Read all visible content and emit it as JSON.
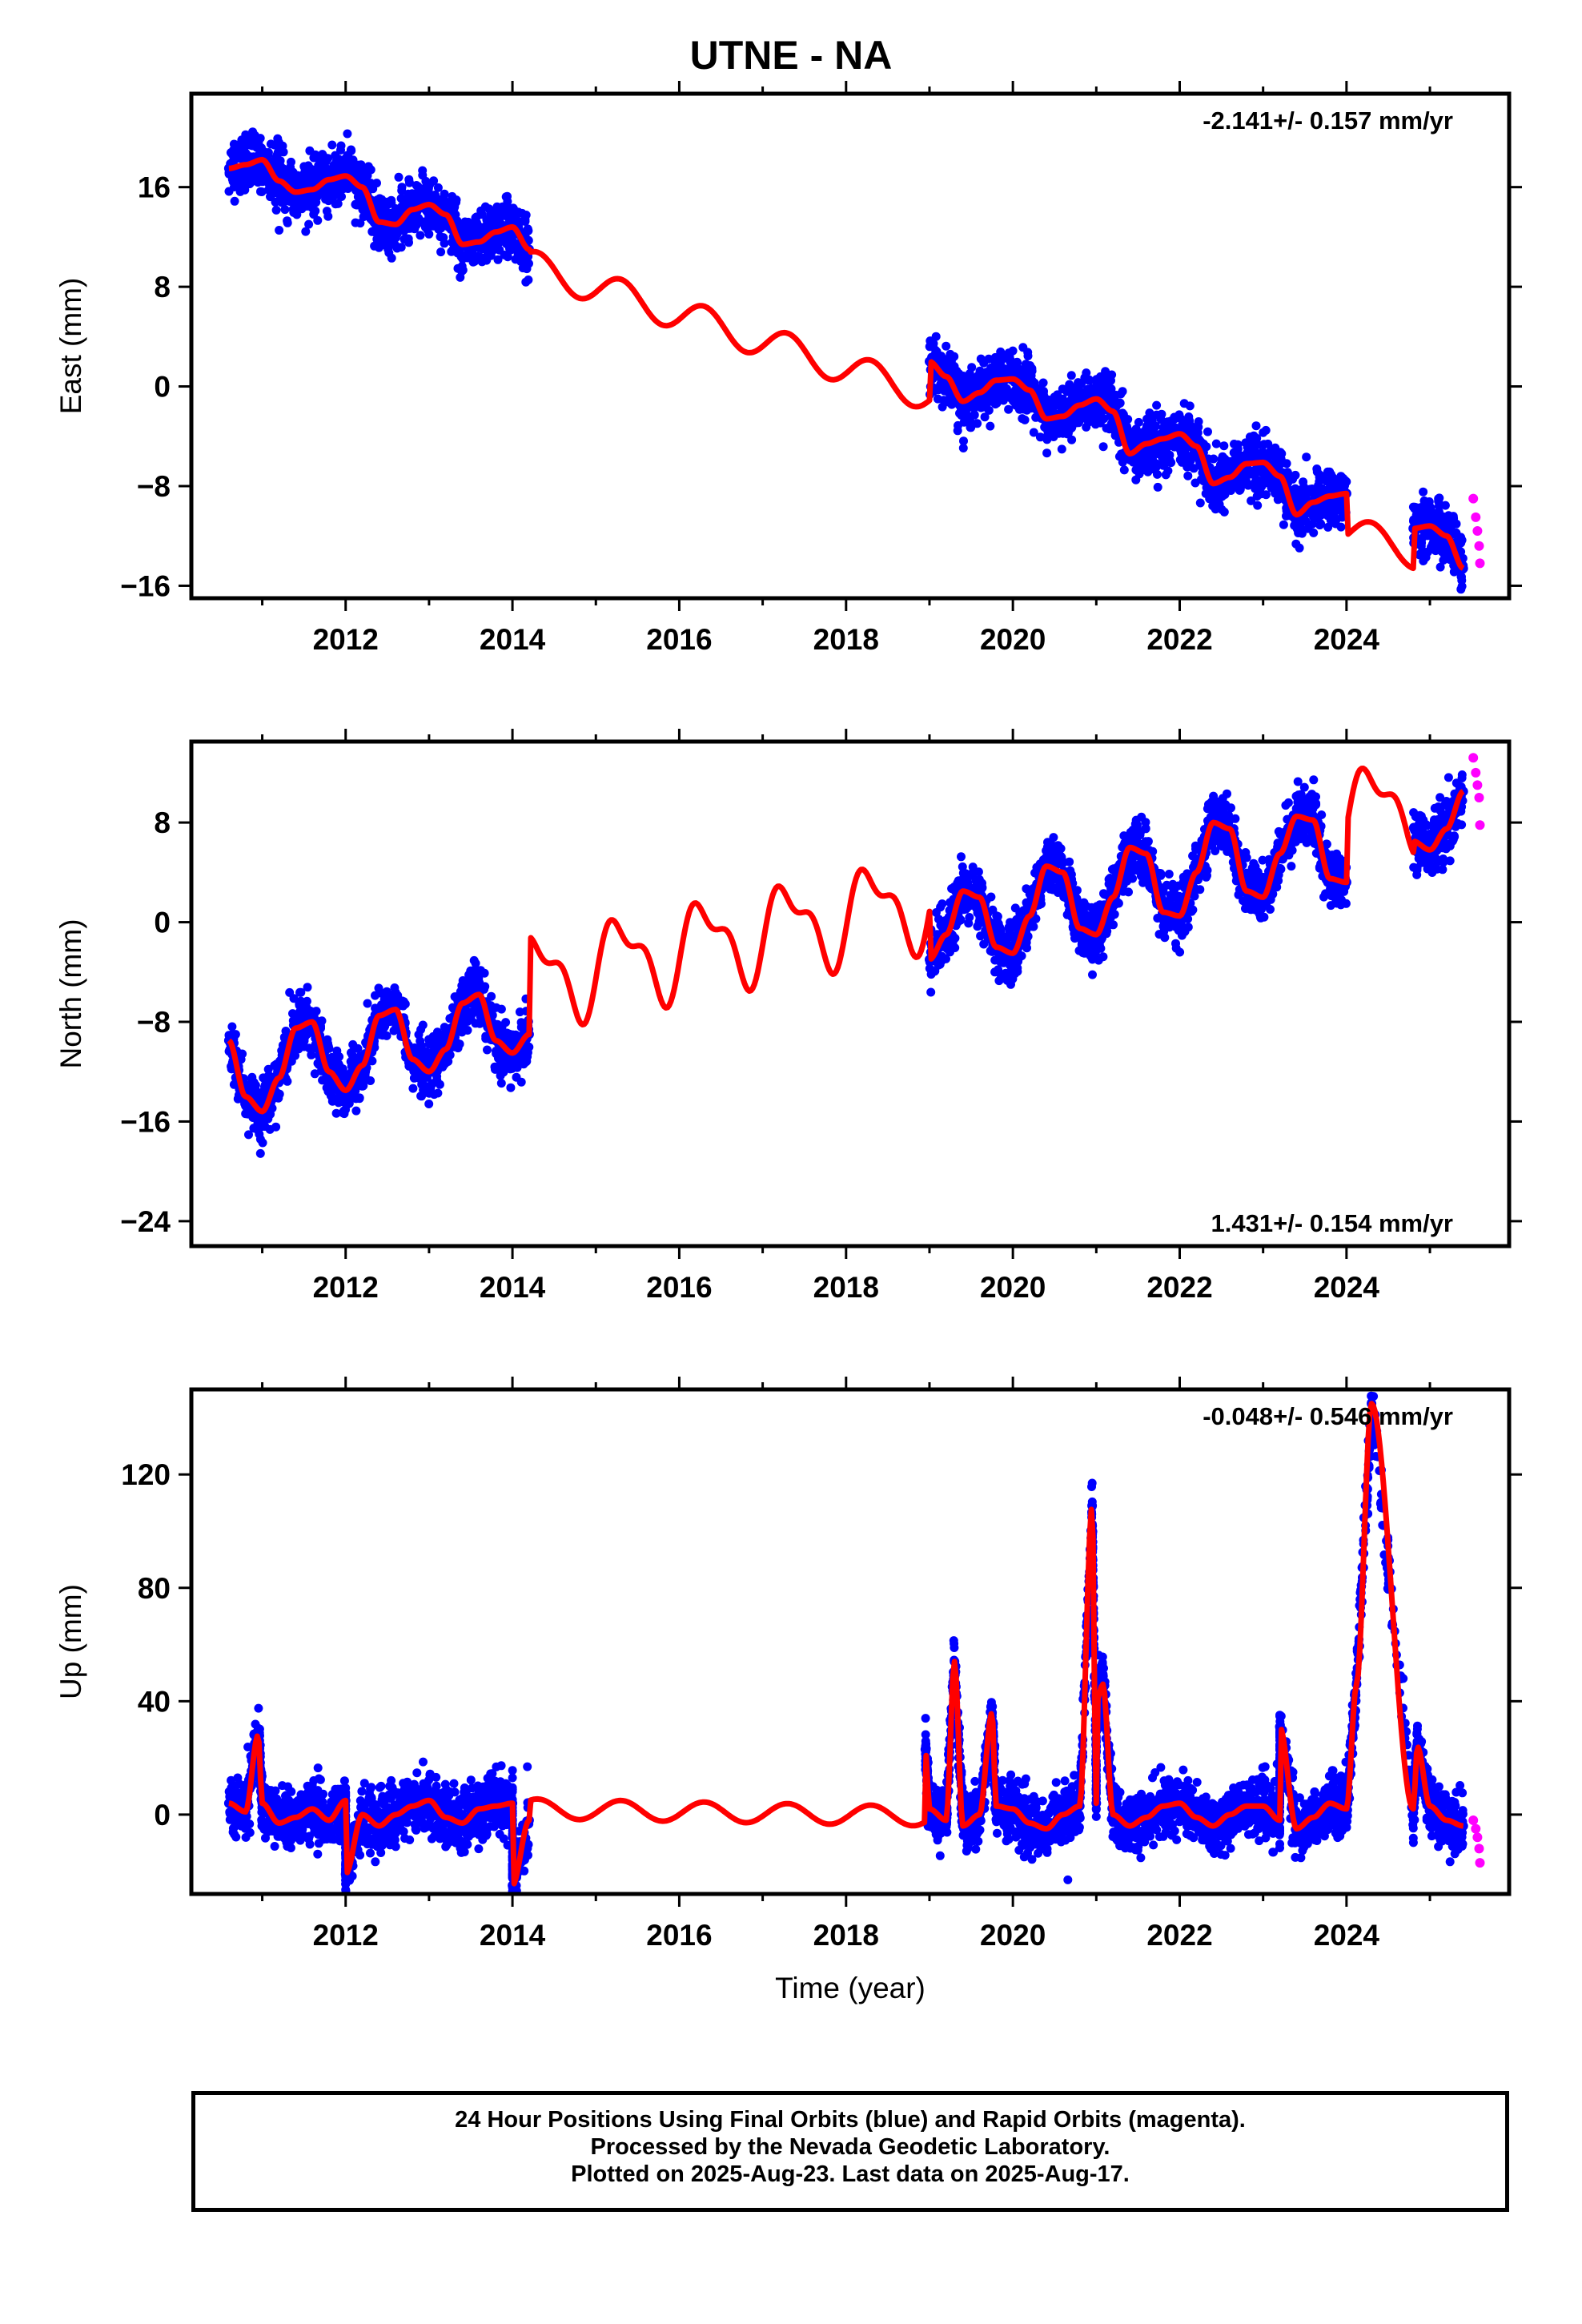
{
  "title": "UTNE - NA",
  "colors": {
    "final_orbits": "#0000ff",
    "rapid_orbits": "#ff00ff",
    "model_fit": "#ff0000",
    "frame": "#000000"
  },
  "footer": {
    "line1": "24 Hour Positions Using Final Orbits (blue) and Rapid Orbits (magenta).",
    "line2": "Processed by the Nevada Geodetic Laboratory.",
    "line3": "Plotted on 2025-Aug-23. Last data on 2025-Aug-17."
  },
  "chart_data": [
    {
      "type": "scatter",
      "ylabel": "East (mm)",
      "xlabel": "",
      "rate_label": "-2.141+/- 0.157 mm/yr",
      "rate_position": "top-right",
      "xlim": [
        2010.15,
        2025.95
      ],
      "ylim": [
        -17,
        23.5
      ],
      "xticks": [
        2012,
        2014,
        2016,
        2018,
        2020,
        2022,
        2024
      ],
      "yticks": [
        16,
        8,
        0,
        -8,
        -16
      ],
      "ytick_labels": [
        "16",
        "8",
        "0",
        "−8",
        "−16"
      ],
      "series": [
        {
          "points": [
            [
              2010.6,
              17.5
            ],
            [
              2010.8,
              17.8
            ],
            [
              2011.0,
              18.2
            ],
            [
              2011.2,
              16.5
            ],
            [
              2011.4,
              15.6
            ],
            [
              2011.6,
              15.8
            ],
            [
              2011.8,
              16.6
            ],
            [
              2012.0,
              16.9
            ],
            [
              2012.2,
              16.0
            ],
            [
              2012.4,
              13.2
            ],
            [
              2012.6,
              13.0
            ],
            [
              2012.8,
              14.2
            ],
            [
              2013.0,
              14.6
            ],
            [
              2013.2,
              13.8
            ],
            [
              2013.4,
              11.4
            ],
            [
              2013.6,
              11.6
            ],
            [
              2013.8,
              12.4
            ],
            [
              2014.0,
              12.8
            ],
            [
              2014.2,
              11.0
            ],
            [
              2019.0,
              2.0
            ],
            [
              2019.2,
              0.8
            ],
            [
              2019.4,
              -1.2
            ],
            [
              2019.6,
              -0.5
            ],
            [
              2019.8,
              0.5
            ],
            [
              2020.0,
              0.6
            ],
            [
              2020.2,
              -0.3
            ],
            [
              2020.4,
              -2.6
            ],
            [
              2020.6,
              -2.4
            ],
            [
              2020.8,
              -1.5
            ],
            [
              2021.0,
              -1.0
            ],
            [
              2021.2,
              -2.0
            ],
            [
              2021.4,
              -5.4
            ],
            [
              2021.6,
              -4.6
            ],
            [
              2021.8,
              -4.2
            ],
            [
              2022.0,
              -3.8
            ],
            [
              2022.2,
              -4.8
            ],
            [
              2022.4,
              -7.8
            ],
            [
              2022.6,
              -7.3
            ],
            [
              2022.8,
              -6.2
            ],
            [
              2023.0,
              -6.1
            ],
            [
              2023.2,
              -7.2
            ],
            [
              2023.4,
              -10.3
            ],
            [
              2023.6,
              -9.3
            ],
            [
              2023.8,
              -8.8
            ],
            [
              2024.0,
              -8.6
            ],
            [
              2024.8,
              -11.4
            ],
            [
              2025.0,
              -11.2
            ],
            [
              2025.2,
              -12.0
            ],
            [
              2025.4,
              -14.6
            ]
          ]
        },
        {
          "points": [
            [
              2025.52,
              -9.0
            ],
            [
              2025.55,
              -10.5
            ],
            [
              2025.57,
              -11.6
            ],
            [
              2025.59,
              -12.8
            ],
            [
              2025.6,
              -14.2
            ]
          ]
        }
      ]
    },
    {
      "type": "scatter",
      "ylabel": "North (mm)",
      "xlabel": "",
      "rate_label": "1.431+/- 0.154 mm/yr",
      "rate_position": "bottom-right",
      "xlim": [
        2010.15,
        2025.95
      ],
      "ylim": [
        -26,
        14.5
      ],
      "xticks": [
        2012,
        2014,
        2016,
        2018,
        2020,
        2022,
        2024
      ],
      "yticks": [
        8,
        0,
        -8,
        -16,
        -24
      ],
      "ytick_labels": [
        "8",
        "0",
        "−8",
        "−16",
        "−24"
      ],
      "series": [
        {
          "points": [
            [
              2010.6,
              -9.5
            ],
            [
              2010.8,
              -14.0
            ],
            [
              2011.0,
              -15.2
            ],
            [
              2011.2,
              -12.5
            ],
            [
              2011.4,
              -8.5
            ],
            [
              2011.6,
              -8.0
            ],
            [
              2011.8,
              -12.0
            ],
            [
              2012.0,
              -13.5
            ],
            [
              2012.2,
              -11.5
            ],
            [
              2012.4,
              -7.5
            ],
            [
              2012.6,
              -7.0
            ],
            [
              2012.8,
              -11.0
            ],
            [
              2013.0,
              -12.0
            ],
            [
              2013.2,
              -10.2
            ],
            [
              2013.4,
              -6.5
            ],
            [
              2013.6,
              -5.8
            ],
            [
              2013.8,
              -9.5
            ],
            [
              2014.0,
              -10.5
            ],
            [
              2014.2,
              -9.0
            ],
            [
              2019.0,
              -3.0
            ],
            [
              2019.2,
              -1.0
            ],
            [
              2019.4,
              2.5
            ],
            [
              2019.6,
              2.0
            ],
            [
              2019.8,
              -2.0
            ],
            [
              2020.0,
              -2.5
            ],
            [
              2020.2,
              0.5
            ],
            [
              2020.4,
              4.5
            ],
            [
              2020.6,
              4.0
            ],
            [
              2020.8,
              -0.5
            ],
            [
              2021.0,
              -1.0
            ],
            [
              2021.2,
              2.0
            ],
            [
              2021.4,
              6.0
            ],
            [
              2021.6,
              5.5
            ],
            [
              2021.8,
              0.8
            ],
            [
              2022.0,
              0.5
            ],
            [
              2022.2,
              4.0
            ],
            [
              2022.4,
              8.0
            ],
            [
              2022.6,
              7.5
            ],
            [
              2022.8,
              2.5
            ],
            [
              2023.0,
              2.0
            ],
            [
              2023.2,
              5.5
            ],
            [
              2023.4,
              8.5
            ],
            [
              2023.6,
              8.2
            ],
            [
              2023.8,
              3.5
            ],
            [
              2024.0,
              3.2
            ],
            [
              2024.8,
              6.5
            ],
            [
              2025.0,
              5.8
            ],
            [
              2025.2,
              7.5
            ],
            [
              2025.4,
              10.5
            ]
          ]
        },
        {
          "points": [
            [
              2025.52,
              13.2
            ],
            [
              2025.55,
              12.0
            ],
            [
              2025.57,
              11.0
            ],
            [
              2025.59,
              10.0
            ],
            [
              2025.6,
              7.8
            ]
          ]
        }
      ]
    },
    {
      "type": "scatter",
      "ylabel": "Up (mm)",
      "xlabel": "Time (year)",
      "rate_label": "-0.048+/- 0.546 mm/yr",
      "rate_position": "top-right",
      "xlim": [
        2010.15,
        2025.95
      ],
      "ylim": [
        -28,
        150
      ],
      "xticks": [
        2012,
        2014,
        2016,
        2018,
        2020,
        2022,
        2024
      ],
      "yticks": [
        120,
        80,
        40,
        0
      ],
      "ytick_labels": [
        "120",
        "80",
        "40",
        "0"
      ],
      "series": [
        {
          "points": [
            [
              2010.6,
              4
            ],
            [
              2010.8,
              1
            ],
            [
              2011.0,
              4
            ],
            [
              2011.2,
              -3
            ],
            [
              2011.4,
              -1
            ],
            [
              2011.6,
              2
            ],
            [
              2011.8,
              -2
            ],
            [
              2012.0,
              5
            ],
            [
              2012.2,
              0
            ],
            [
              2012.4,
              -4
            ],
            [
              2012.6,
              0
            ],
            [
              2012.8,
              3
            ],
            [
              2013.0,
              5
            ],
            [
              2013.2,
              -1
            ],
            [
              2013.4,
              -3
            ],
            [
              2013.6,
              2
            ],
            [
              2013.8,
              3
            ],
            [
              2014.0,
              4
            ],
            [
              2014.2,
              -2
            ],
            [
              2019.0,
              2
            ],
            [
              2019.2,
              -2
            ],
            [
              2019.4,
              -4
            ],
            [
              2019.6,
              0
            ],
            [
              2019.8,
              3
            ],
            [
              2020.0,
              2
            ],
            [
              2020.2,
              -3
            ],
            [
              2020.4,
              -5
            ],
            [
              2020.6,
              0
            ],
            [
              2020.8,
              3
            ],
            [
              2021.0,
              4
            ],
            [
              2021.2,
              0
            ],
            [
              2021.4,
              -4
            ],
            [
              2021.6,
              -1
            ],
            [
              2021.8,
              3
            ],
            [
              2022.0,
              4
            ],
            [
              2022.2,
              -1
            ],
            [
              2022.4,
              -4
            ],
            [
              2022.6,
              0
            ],
            [
              2022.8,
              3
            ],
            [
              2023.0,
              3
            ],
            [
              2023.2,
              -2
            ],
            [
              2023.4,
              -5
            ],
            [
              2023.6,
              -1
            ],
            [
              2023.8,
              4
            ],
            [
              2024.0,
              2
            ],
            [
              2024.8,
              2
            ],
            [
              2025.0,
              3
            ],
            [
              2025.2,
              -2
            ],
            [
              2025.4,
              -4
            ],
            [
              2019.3,
              54
            ],
            [
              2020.95,
              109
            ],
            [
              2021.08,
              46
            ],
            [
              2021.0,
              40
            ],
            [
              2024.12,
              46
            ],
            [
              2024.3,
              145
            ],
            [
              2018.95,
              23
            ],
            [
              2019.75,
              36
            ],
            [
              2010.95,
              28
            ],
            [
              2012.0,
              -21
            ],
            [
              2014.0,
              -25
            ],
            [
              2023.2,
              31
            ],
            [
              2024.85,
              24
            ]
          ]
        },
        {
          "points": [
            [
              2025.52,
              -2
            ],
            [
              2025.55,
              -5
            ],
            [
              2025.57,
              -8
            ],
            [
              2025.59,
              -12
            ],
            [
              2025.6,
              -17
            ]
          ]
        }
      ]
    }
  ]
}
